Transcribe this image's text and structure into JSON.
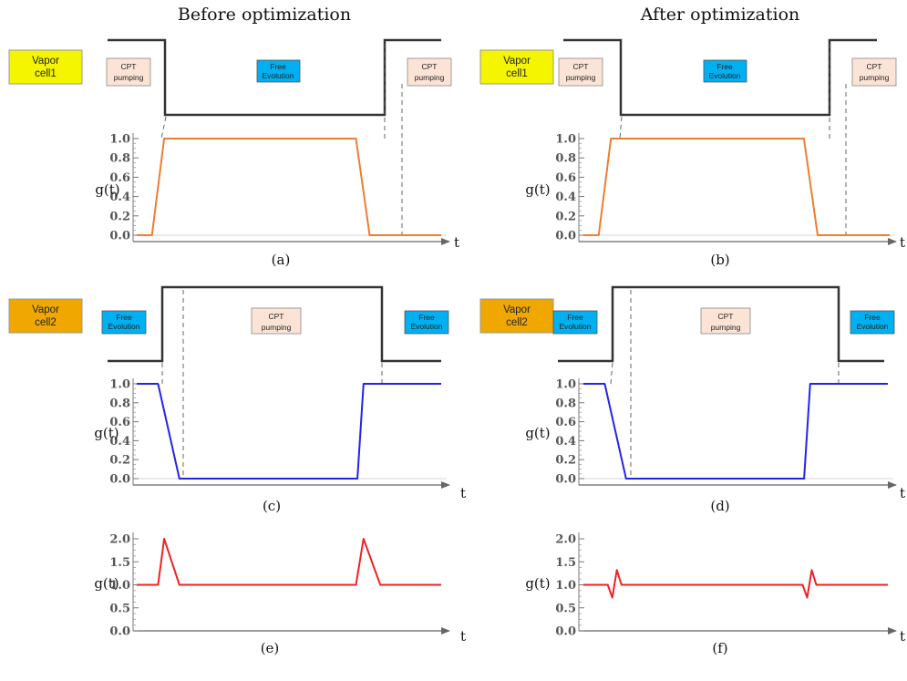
{
  "titles": {
    "before": "Before optimization",
    "after": "After optimization"
  },
  "cells": {
    "cell1": [
      "Vapor",
      "cell1"
    ],
    "cell2": [
      "Vapor",
      "cell2"
    ]
  },
  "boxes": {
    "cpt": [
      "CPT",
      "pumping"
    ],
    "free": [
      "Free",
      "Evolution"
    ]
  },
  "y_label": "g(t)",
  "x_label": "t",
  "ticks": [
    "0.0",
    "0.2",
    "0.4",
    "0.6",
    "0.8",
    "1.0"
  ],
  "ticks_e": [
    "0.0",
    "0.5",
    "1.0",
    "1.5",
    "2.0"
  ],
  "captions": [
    "(a)",
    "(b)",
    "(c)",
    "(d)",
    "(e)",
    "(f)"
  ],
  "colors": {
    "cell1": "#f5f500",
    "cell2": "#f0a800",
    "cpt_box": "#fbe4d5",
    "free_box": "#00b0f0",
    "orange": "#ed7d31",
    "blue": "#2424e6",
    "red": "#ee2222"
  },
  "chart_data": [
    {
      "type": "line",
      "caption": "(a)",
      "series": [
        {
          "x": [
            0,
            0.05,
            0.07,
            0.09,
            0.72,
            0.765,
            0.8,
            1.0
          ],
          "values": [
            0,
            0,
            0.5,
            1,
            1,
            0,
            0,
            0
          ]
        }
      ],
      "xlabel": "t",
      "ylabel": "g(t)",
      "ylim": [
        0,
        1
      ]
    },
    {
      "type": "line",
      "caption": "(b)",
      "series": [
        {
          "x": [
            0,
            0.05,
            0.07,
            0.09,
            0.72,
            0.765,
            0.8,
            1.0
          ],
          "values": [
            0,
            0,
            0.5,
            1,
            1,
            0,
            0,
            0
          ]
        }
      ],
      "xlabel": "t",
      "ylabel": "g(t)",
      "ylim": [
        0,
        1
      ]
    },
    {
      "type": "line",
      "caption": "(c)",
      "series": [
        {
          "x": [
            0,
            0.07,
            0.14,
            0.7,
            0.725,
            0.745,
            1.0
          ],
          "values": [
            1,
            1,
            0,
            0,
            0,
            1,
            1
          ]
        }
      ],
      "xlabel": "t",
      "ylabel": "g(t)",
      "ylim": [
        0,
        1
      ]
    },
    {
      "type": "line",
      "caption": "(d)",
      "series": [
        {
          "x": [
            0,
            0.07,
            0.14,
            0.7,
            0.725,
            0.745,
            1.0
          ],
          "values": [
            1,
            1,
            0,
            0,
            0,
            1,
            1
          ]
        }
      ],
      "xlabel": "t",
      "ylabel": "g(t)",
      "ylim": [
        0,
        1
      ]
    },
    {
      "type": "line",
      "caption": "(e)",
      "series": [
        {
          "x": [
            0,
            0.07,
            0.09,
            0.14,
            0.72,
            0.745,
            0.8,
            1.0
          ],
          "values": [
            1,
            1,
            2,
            1,
            1,
            2,
            1,
            1
          ]
        }
      ],
      "xlabel": "t",
      "ylabel": "g(t)",
      "ylim": [
        0,
        2
      ]
    },
    {
      "type": "line",
      "caption": "(f)",
      "series": [
        {
          "x": [
            0,
            0.08,
            0.095,
            0.11,
            0.125,
            0.72,
            0.735,
            0.75,
            0.765,
            1.0
          ],
          "values": [
            1,
            1,
            0.72,
            1.32,
            1,
            1,
            0.72,
            1.32,
            1,
            1
          ]
        }
      ],
      "xlabel": "t",
      "ylabel": "g(t)",
      "ylim": [
        0,
        2
      ]
    }
  ]
}
